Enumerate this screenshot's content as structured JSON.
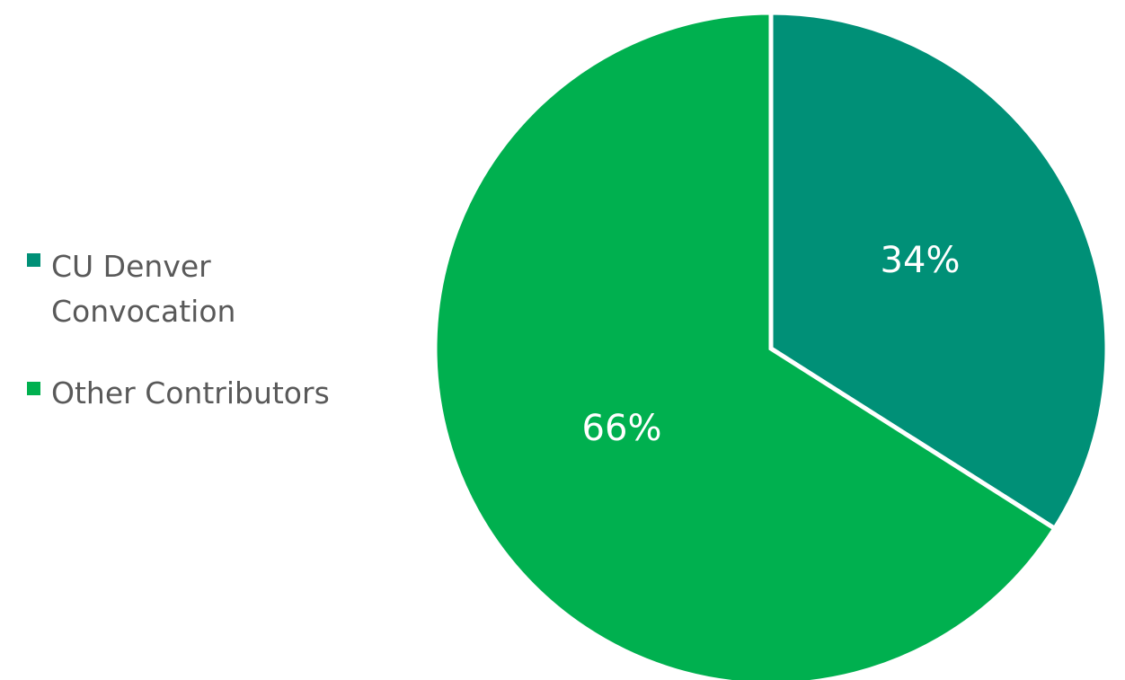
{
  "chart_data": {
    "type": "pie",
    "categories": [
      "CU Denver Convocation",
      "Other Contributors"
    ],
    "values": [
      34,
      66
    ],
    "data_labels": [
      "34%",
      "66%"
    ],
    "colors": [
      "#009077",
      "#00B04F"
    ],
    "legend": {
      "placement": "left",
      "entries": [
        {
          "lines": [
            "CU Denver",
            "Convocation"
          ]
        },
        {
          "lines": [
            "Other Contributors"
          ]
        }
      ]
    },
    "start": "12 o'clock",
    "direction": "clockwise"
  }
}
